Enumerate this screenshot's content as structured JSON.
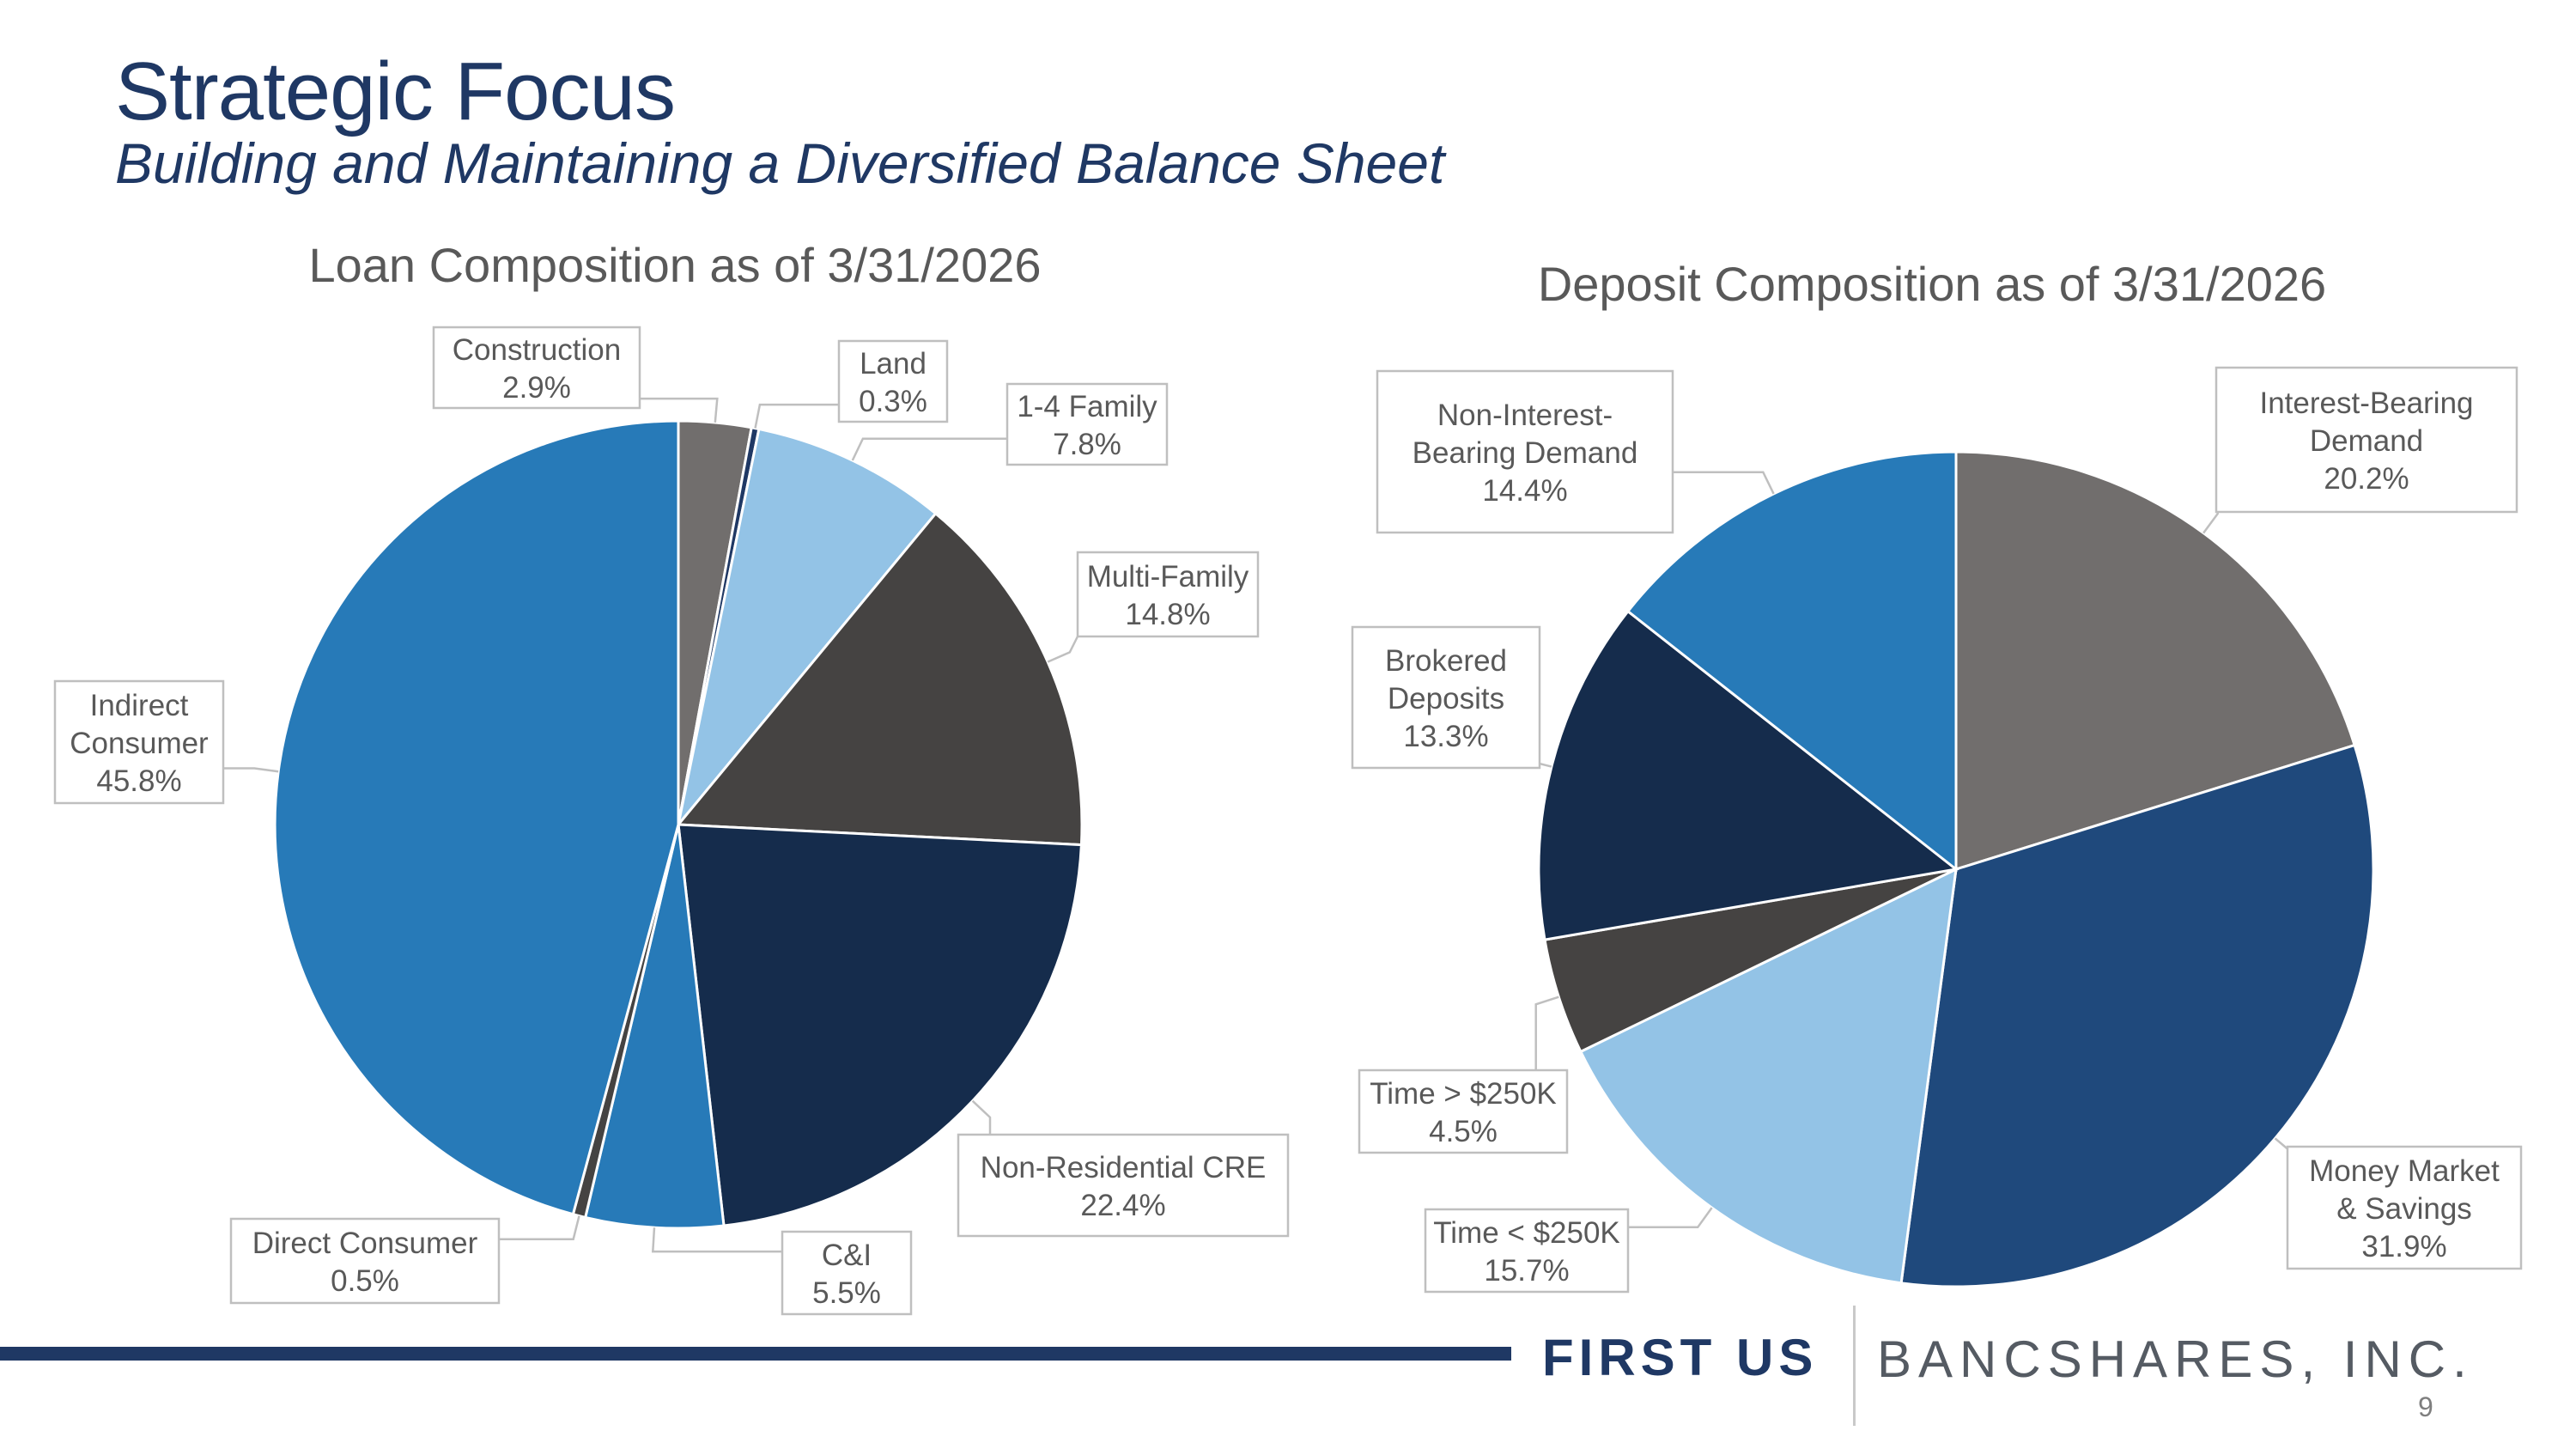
{
  "slide": {
    "title": "Strategic Focus",
    "subtitle": "Building and Maintaining a Diversified Balance Sheet",
    "page_number": "9"
  },
  "logo": {
    "first": "FIRST US",
    "rest": "BANCSHARES, INC."
  },
  "colors": {
    "title": "#1f3864",
    "footer_bar": "#1f3864"
  },
  "chart_data": [
    {
      "type": "pie",
      "title": "Loan Composition as of 3/31/2026",
      "slices": [
        {
          "label": "Construction",
          "value": 2.9,
          "value_label": "2.9%",
          "color": "#716e6d"
        },
        {
          "label": "Land",
          "value": 0.3,
          "value_label": "0.3%",
          "color": "#1f3864"
        },
        {
          "label": "1-4 Family",
          "value": 7.8,
          "value_label": "7.8%",
          "color": "#93c3e6"
        },
        {
          "label": "Multi-Family",
          "value": 14.8,
          "value_label": "14.8%",
          "color": "#454342"
        },
        {
          "label": "Non-Residential CRE",
          "value": 22.4,
          "value_label": "22.4%",
          "color": "#152c4c"
        },
        {
          "label": "C&I",
          "value": 5.5,
          "value_label": "5.5%",
          "color": "#277ab8"
        },
        {
          "label": "Direct Consumer",
          "value": 0.5,
          "value_label": "0.5%",
          "color": "#454342"
        },
        {
          "label": "Indirect Consumer",
          "value": 45.8,
          "value_label": "45.8%",
          "color": "#277ab8"
        }
      ]
    },
    {
      "type": "pie",
      "title": "Deposit Composition as of 3/31/2026",
      "slices": [
        {
          "label": "Interest-Bearing Demand",
          "value": 20.2,
          "value_label": "20.2%",
          "color": "#716e6d"
        },
        {
          "label": "Money Market & Savings",
          "value": 31.9,
          "value_label": "31.9%",
          "color": "#1f497c"
        },
        {
          "label": "Time < $250K",
          "value": 15.7,
          "value_label": "15.7%",
          "color": "#93c3e6"
        },
        {
          "label": "Time > $250K",
          "value": 4.5,
          "value_label": "4.5%",
          "color": "#454342"
        },
        {
          "label": "Brokered Deposits",
          "value": 13.3,
          "value_label": "13.3%",
          "color": "#152c4c"
        },
        {
          "label": "Non-Interest-Bearing Demand",
          "value": 14.4,
          "value_label": "14.4%",
          "color": "#277ab8"
        }
      ]
    }
  ]
}
